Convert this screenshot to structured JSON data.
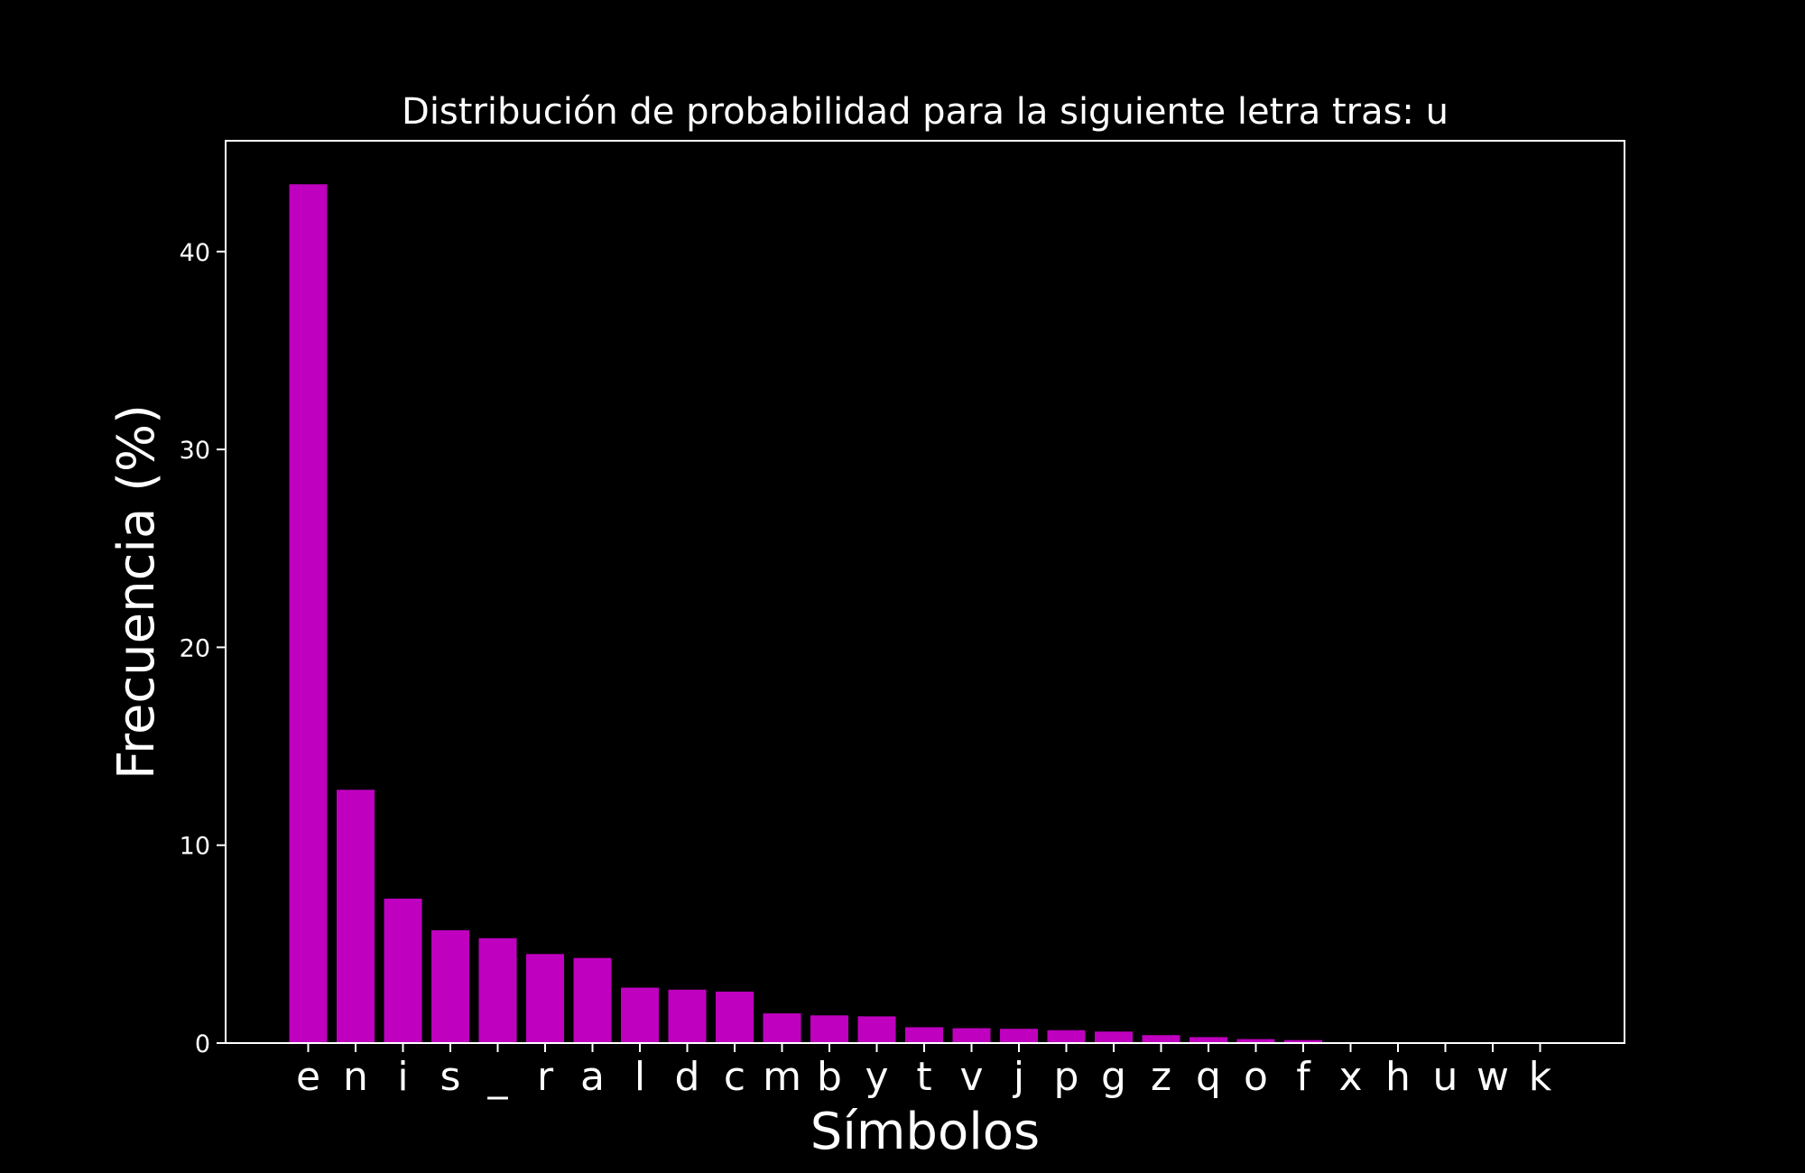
{
  "chart_data": {
    "type": "bar",
    "title": "Distribución de probabilidad para la siguiente letra tras: u",
    "xlabel": "Símbolos",
    "ylabel": "Frecuencia (%)",
    "categories": [
      "e",
      "n",
      "i",
      "s",
      "_",
      "r",
      "a",
      "l",
      "d",
      "c",
      "m",
      "b",
      "y",
      "t",
      "v",
      "j",
      "p",
      "g",
      "z",
      "q",
      "o",
      "f",
      "x",
      "h",
      "u",
      "w",
      "k"
    ],
    "values": [
      43.4,
      12.8,
      7.3,
      5.7,
      5.3,
      4.5,
      4.3,
      2.8,
      2.7,
      2.6,
      1.5,
      1.4,
      1.35,
      0.8,
      0.75,
      0.72,
      0.65,
      0.58,
      0.4,
      0.3,
      0.2,
      0.15,
      0.03,
      0.03,
      0.02,
      0.02,
      0.01
    ],
    "yticks": [
      "0",
      "10",
      "20",
      "30",
      "40"
    ],
    "ylim": [
      0,
      45.6
    ],
    "grid": false,
    "colors": {
      "bar": "#bf00bf",
      "background": "#000000",
      "axes": "#ffffff",
      "text": "#ffffff"
    }
  }
}
